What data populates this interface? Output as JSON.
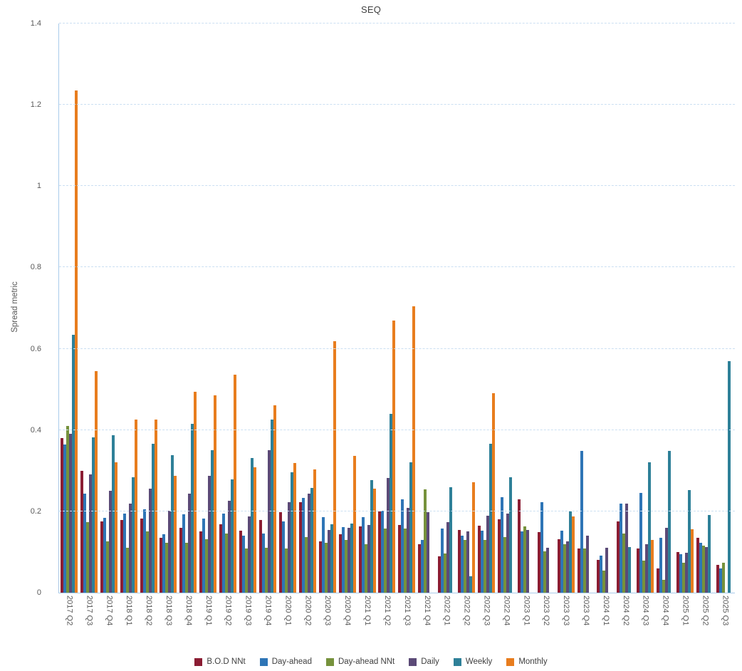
{
  "title": "SEQ",
  "y_axis": {
    "label": "Spread metric",
    "ticks": [
      {
        "label": "0",
        "value": 0
      },
      {
        "label": "0.2",
        "value": 0.2
      },
      {
        "label": "0.4",
        "value": 0.4
      },
      {
        "label": "0.6",
        "value": 0.6
      },
      {
        "label": "0.8",
        "value": 0.8
      },
      {
        "label": "1",
        "value": 1
      },
      {
        "label": "1.2",
        "value": 1.2
      },
      {
        "label": "1.4",
        "value": 1.4
      }
    ]
  },
  "colors": {
    "grid": "#CBDFF2",
    "axis": "#A9CBEA",
    "text": "#595959"
  },
  "chart_data": {
    "type": "bar",
    "title": "SEQ",
    "xlabel": "",
    "ylabel": "Spread metric",
    "ylim": [
      0,
      1.4
    ],
    "grid": true,
    "legend_position": "bottom",
    "categories": [
      "2017 Q2",
      "2017 Q3",
      "2017 Q4",
      "2018 Q1",
      "2018 Q2",
      "2018 Q3",
      "2018 Q4",
      "2019 Q1",
      "2019 Q2",
      "2019 Q3",
      "2019 Q4",
      "2020 Q1",
      "2020 Q2",
      "2020 Q3",
      "2020 Q4",
      "2021 Q1",
      "2021 Q2",
      "2021 Q3",
      "2021 Q4",
      "2022 Q1",
      "2022 Q2",
      "2022 Q3",
      "2022 Q4",
      "2023 Q1",
      "2023 Q2",
      "2023 Q3",
      "2023 Q4",
      "2024 Q1",
      "2024 Q2",
      "2024 Q3",
      "2024 Q4",
      "2025 Q1",
      "2025 Q2",
      "2025 Q3"
    ],
    "series": [
      {
        "name": "B.O.D NNt",
        "color": "#8B1D33",
        "values": [
          0.38,
          0.3,
          0.176,
          0.179,
          0.182,
          0.135,
          0.16,
          0.15,
          0.168,
          0.153,
          0.178,
          0.198,
          0.223,
          0.127,
          0.144,
          0.163,
          0.199,
          0.166,
          0.12,
          0.09,
          0.155,
          0.165,
          0.18,
          0.23,
          0.149,
          0.132,
          0.108,
          0.081,
          0.175,
          0.109,
          0.059,
          0.1,
          0.135,
          0.068
        ]
      },
      {
        "name": "Day-ahead",
        "color": "#2E75B6",
        "values": [
          0.365,
          0.243,
          0.184,
          0.195,
          0.205,
          0.144,
          0.193,
          0.182,
          0.194,
          0.141,
          0.145,
          0.176,
          0.233,
          0.186,
          0.161,
          0.186,
          0.201,
          0.23,
          0.13,
          0.158,
          0.141,
          0.153,
          0.235,
          0.15,
          0.223,
          0.153,
          0.349,
          0.092,
          0.219,
          0.246,
          0.135,
          0.094,
          0.122,
          0.06
        ]
      },
      {
        "name": "Day-ahead NNt",
        "color": "#76923C",
        "values": [
          0.41,
          0.173,
          0.127,
          0.11,
          0.151,
          0.122,
          0.122,
          0.132,
          0.145,
          0.108,
          0.11,
          0.109,
          0.137,
          0.122,
          0.129,
          0.119,
          0.158,
          0.158,
          0.254,
          0.096,
          0.13,
          0.13,
          0.137,
          0.163,
          0.102,
          0.12,
          0.108,
          0.055,
          0.145,
          0.078,
          0.032,
          0.073,
          0.115,
          0.073
        ]
      },
      {
        "name": "Daily",
        "color": "#5B4A77",
        "values": [
          0.39,
          0.291,
          0.25,
          0.219,
          0.255,
          0.201,
          0.243,
          0.287,
          0.226,
          0.188,
          0.351,
          0.223,
          0.243,
          0.154,
          0.16,
          0.166,
          0.283,
          0.208,
          0.198,
          0.173,
          0.15,
          0.19,
          0.195,
          0.155,
          0.11,
          0.126,
          0.141,
          0.11,
          0.219,
          0.119,
          0.16,
          0.098,
          0.112,
          0
        ]
      },
      {
        "name": "Weekly",
        "color": "#2E8098",
        "values": [
          0.635,
          0.382,
          0.387,
          0.284,
          0.367,
          0.339,
          0.416,
          0.35,
          0.278,
          0.332,
          0.425,
          0.297,
          0.258,
          0.168,
          0.17,
          0.277,
          0.44,
          0.321,
          0,
          0.259,
          0.04,
          0.366,
          0.284,
          0,
          0,
          0.199,
          0,
          0,
          0.113,
          0.321,
          0.349,
          0.252,
          0.191,
          0.57
        ]
      },
      {
        "name": "Monthly",
        "color": "#E87D1E",
        "values": [
          1.235,
          0.545,
          0.32,
          0.425,
          0.425,
          0.287,
          0.495,
          0.485,
          0.537,
          0.308,
          0.46,
          0.319,
          0.303,
          0.619,
          0.337,
          0.256,
          0.67,
          0.705,
          0,
          0,
          0.271,
          0.49,
          0,
          0,
          0,
          0.188,
          0,
          0,
          0,
          0.13,
          0,
          0.156,
          0,
          0
        ]
      }
    ]
  }
}
